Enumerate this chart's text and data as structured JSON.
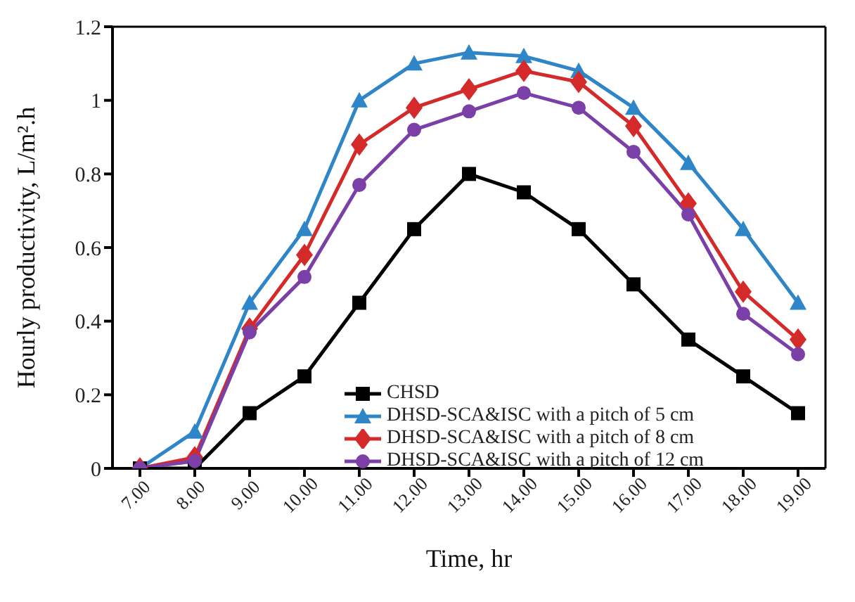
{
  "chart_data": {
    "type": "line",
    "xlabel": "Time, hr",
    "ylabel": "Hourly productivity, L/m².h",
    "categories": [
      "7.00",
      "8.00",
      "9.00",
      "10.00",
      "11.00",
      "12.00",
      "13.00",
      "14.00",
      "15.00",
      "16.00",
      "17.00",
      "18.00",
      "19.00"
    ],
    "ylim": [
      0,
      1.2
    ],
    "yticks": [
      0,
      {
        "value": 0.2,
        "label": "0.2"
      },
      {
        "value": 0.4,
        "label": "0.4"
      },
      {
        "value": 0.6,
        "label": "0.6"
      },
      {
        "value": 0.8,
        "label": "0.8"
      },
      1,
      {
        "value": 1.2,
        "label": "1.2"
      }
    ],
    "grid": false,
    "legend": "bottom",
    "line_style": "solid",
    "series": [
      {
        "name": "CHSD",
        "color": "#000000",
        "marker": "square",
        "values": [
          0,
          0,
          0.15,
          0.25,
          0.45,
          0.65,
          0.8,
          0.75,
          0.65,
          0.5,
          0.35,
          0.25,
          0.15
        ]
      },
      {
        "name": "DHSD-SCA&ISC with a pitch of 5 cm",
        "color": "#2e86c8",
        "marker": "triangle",
        "values": [
          0,
          0.1,
          0.45,
          0.65,
          1.0,
          1.1,
          1.13,
          1.12,
          1.08,
          0.98,
          0.83,
          0.65,
          0.45
        ]
      },
      {
        "name": "DHSD-SCA&ISC with a pitch of 8 cm",
        "color": "#d42a2a",
        "marker": "diamond",
        "values": [
          0,
          0.03,
          0.38,
          0.58,
          0.88,
          0.98,
          1.03,
          1.08,
          1.05,
          0.93,
          0.72,
          0.48,
          0.35
        ]
      },
      {
        "name": "DHSD-SCA&ISC with a pitch of 12 cm",
        "color": "#7b3fa8",
        "marker": "circle",
        "values": [
          0,
          0.02,
          0.37,
          0.52,
          0.77,
          0.92,
          0.97,
          1.02,
          0.98,
          0.86,
          0.69,
          0.42,
          0.31
        ]
      }
    ]
  }
}
